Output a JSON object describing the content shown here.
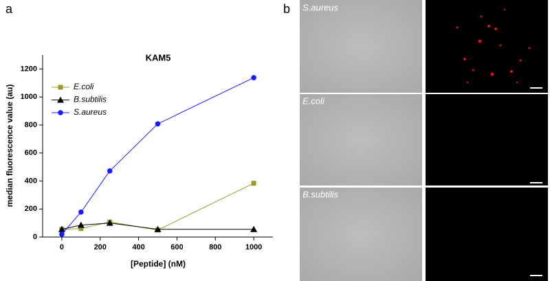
{
  "chart_data": {
    "type": "line",
    "title": "KAM5",
    "x_label": "[Peptide] (nM)",
    "y_label": "median fluorescence value (au)",
    "xlim": [
      -100,
      1100
    ],
    "xticks": [
      0,
      200,
      400,
      600,
      800,
      1000
    ],
    "ylim": [
      0,
      1300
    ],
    "yticks": [
      0,
      200,
      400,
      600,
      800,
      1000,
      1200
    ],
    "legend": "upper left",
    "series": [
      {
        "name": "E.coli",
        "color": "#9a9a2a",
        "marker": "square",
        "x": [
          0,
          100,
          250,
          500,
          1000
        ],
        "values": [
          55,
          60,
          108,
          50,
          384
        ]
      },
      {
        "name": "B.subtilis",
        "color": "#000000",
        "marker": "triangle",
        "x": [
          0,
          100,
          250,
          500,
          1000
        ],
        "values": [
          55,
          85,
          100,
          55,
          55
        ]
      },
      {
        "name": "S.aureus",
        "color": "#1a1aff",
        "marker": "circle",
        "x": [
          0,
          100,
          250,
          500,
          1000
        ],
        "values": [
          20,
          178,
          472,
          808,
          1138
        ]
      }
    ]
  },
  "panels": [
    "a",
    "b"
  ],
  "micrographs": [
    "S.aureus",
    "E.coli",
    "B.subtilis"
  ]
}
